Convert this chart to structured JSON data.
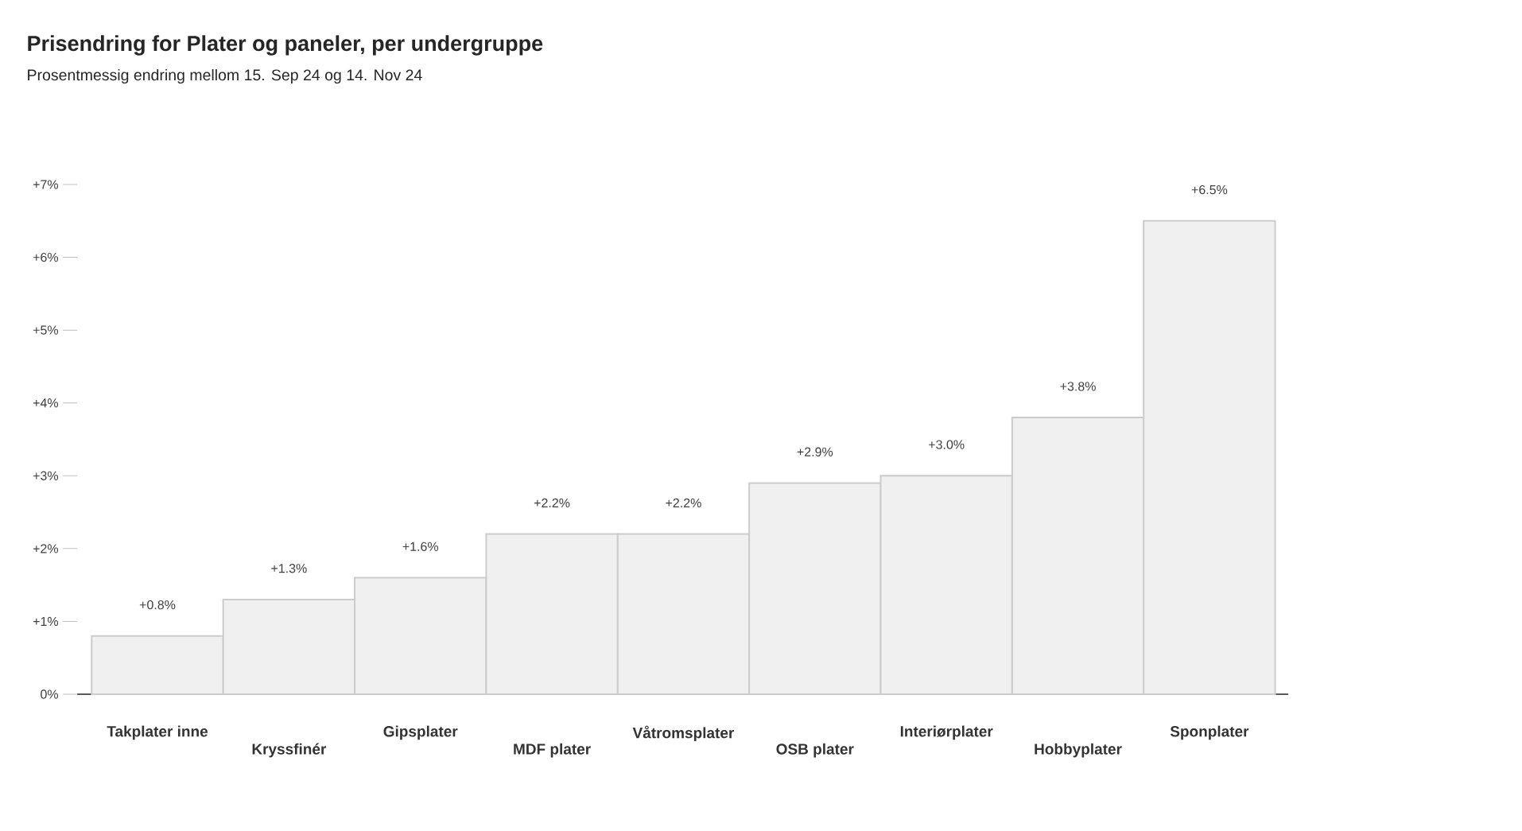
{
  "chart_data": {
    "type": "bar",
    "title": "Prisendring for Plater og paneler, per undergruppe",
    "subtitle": "Prosentmessig endring mellom 15. Sep 24 og 14. Nov 24",
    "categories": [
      "Takplater inne",
      "Kryssfinér",
      "Gipsplater",
      "MDF plater",
      "Våtromsplater",
      "OSB plater",
      "Interiørplater",
      "Hobbyplater",
      "Sponplater"
    ],
    "values": [
      0.8,
      1.3,
      1.6,
      2.2,
      2.2,
      2.9,
      3.0,
      3.8,
      6.5
    ],
    "value_labels": [
      "+0.8%",
      "+1.3%",
      "+1.6%",
      "+2.2%",
      "+2.2%",
      "+2.9%",
      "+3.0%",
      "+3.8%",
      "+6.5%"
    ],
    "color": "#f0f0f0",
    "ylim": [
      0,
      7
    ],
    "yticks": [
      {
        "value": 0,
        "label": "0%"
      },
      {
        "value": 1,
        "label": "+1%"
      },
      {
        "value": 2,
        "label": "+2%"
      },
      {
        "value": 3,
        "label": "+3%"
      },
      {
        "value": 4,
        "label": "+4%"
      },
      {
        "value": 5,
        "label": "+5%"
      },
      {
        "value": 6,
        "label": "+6%"
      },
      {
        "value": 7,
        "label": "+7%"
      }
    ]
  }
}
